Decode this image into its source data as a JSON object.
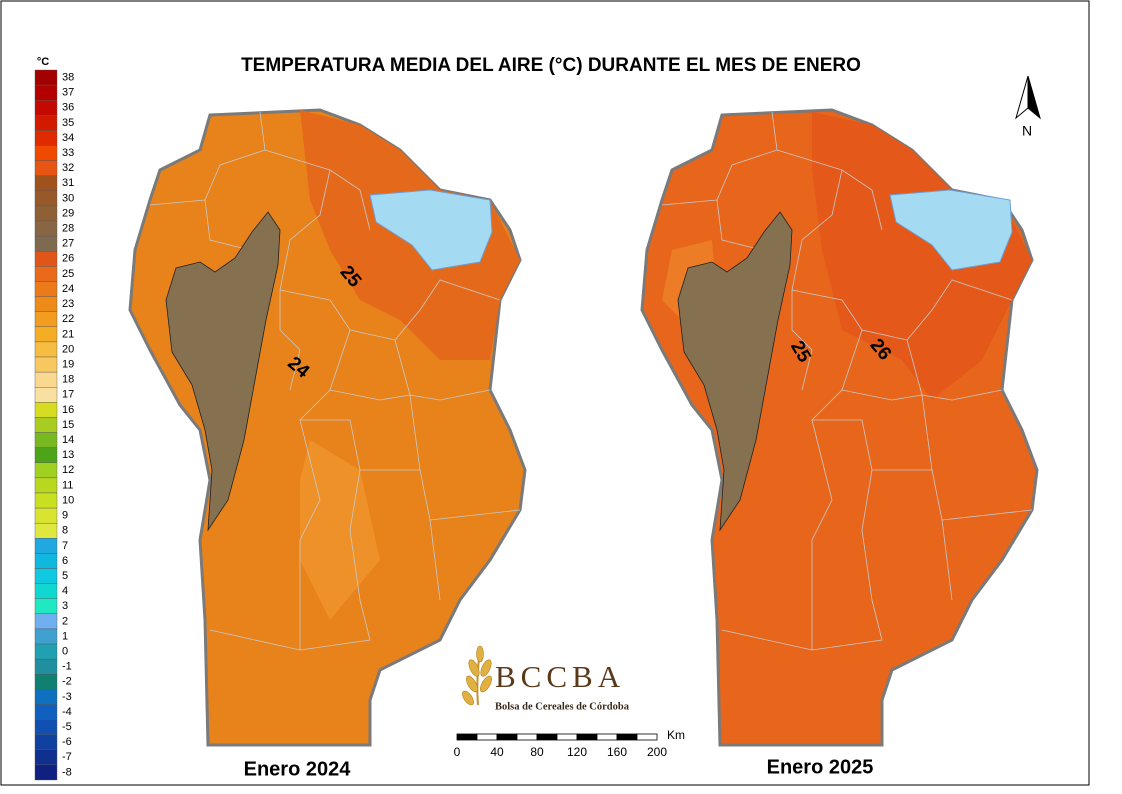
{
  "title": "TEMPERATURA MEDIA DEL AIRE (°C) DURANTE EL MES DE ENERO",
  "legend": {
    "unit": "°C",
    "items": [
      {
        "label": "38",
        "color": "#a30000"
      },
      {
        "label": "37",
        "color": "#b30000"
      },
      {
        "label": "36",
        "color": "#c40a00"
      },
      {
        "label": "35",
        "color": "#d21a00"
      },
      {
        "label": "34",
        "color": "#e02a00"
      },
      {
        "label": "33",
        "color": "#f04a00"
      },
      {
        "label": "32",
        "color": "#e65512"
      },
      {
        "label": "31",
        "color": "#a0521c"
      },
      {
        "label": "30",
        "color": "#98592a"
      },
      {
        "label": "29",
        "color": "#8f6035"
      },
      {
        "label": "28",
        "color": "#886645"
      },
      {
        "label": "27",
        "color": "#7f6a50"
      },
      {
        "label": "26",
        "color": "#e0561a"
      },
      {
        "label": "25",
        "color": "#e86a1a"
      },
      {
        "label": "24",
        "color": "#ec7a18"
      },
      {
        "label": "23",
        "color": "#ee8a18"
      },
      {
        "label": "22",
        "color": "#f29c20"
      },
      {
        "label": "21",
        "color": "#f5ad25"
      },
      {
        "label": "20",
        "color": "#f6bd40"
      },
      {
        "label": "19",
        "color": "#f8c860"
      },
      {
        "label": "18",
        "color": "#fad890"
      },
      {
        "label": "17",
        "color": "#fae0a0"
      },
      {
        "label": "16",
        "color": "#d8dc20"
      },
      {
        "label": "15",
        "color": "#a8cc20"
      },
      {
        "label": "14",
        "color": "#78b820"
      },
      {
        "label": "13",
        "color": "#4ea418"
      },
      {
        "label": "12",
        "color": "#a0d020"
      },
      {
        "label": "11",
        "color": "#b8d820"
      },
      {
        "label": "10",
        "color": "#c8e020"
      },
      {
        "label": "9",
        "color": "#d8e430"
      },
      {
        "label": "8",
        "color": "#e0e840"
      },
      {
        "label": "7",
        "color": "#20a8e0"
      },
      {
        "label": "6",
        "color": "#10b8e0"
      },
      {
        "label": "5",
        "color": "#10c8e0"
      },
      {
        "label": "4",
        "color": "#10d8d0"
      },
      {
        "label": "3",
        "color": "#20e8c0"
      },
      {
        "label": "2",
        "color": "#70b0f0"
      },
      {
        "label": "1",
        "color": "#40a0d0"
      },
      {
        "label": "0",
        "color": "#20a0b0"
      },
      {
        "label": "-1",
        "color": "#2090a0"
      },
      {
        "label": "-2",
        "color": "#108070"
      },
      {
        "label": "-3",
        "color": "#1070c0"
      },
      {
        "label": "-4",
        "color": "#1060c0"
      },
      {
        "label": "-5",
        "color": "#1050b0"
      },
      {
        "label": "-6",
        "color": "#1040a0"
      },
      {
        "label": "-7",
        "color": "#103090"
      },
      {
        "label": "-8",
        "color": "#102080"
      }
    ]
  },
  "maps": [
    {
      "label": "Enero 2024",
      "contours": [
        "25",
        "24"
      ]
    },
    {
      "label": "Enero 2025",
      "contours": [
        "25",
        "26"
      ]
    }
  ],
  "north": "N",
  "logo": {
    "name": "BCCBA",
    "subtitle": "Bolsa de Cereales de Córdoba"
  },
  "scale_bar": {
    "ticks": [
      "0",
      "40",
      "80",
      "120",
      "160",
      "200"
    ],
    "unit": "Km"
  }
}
